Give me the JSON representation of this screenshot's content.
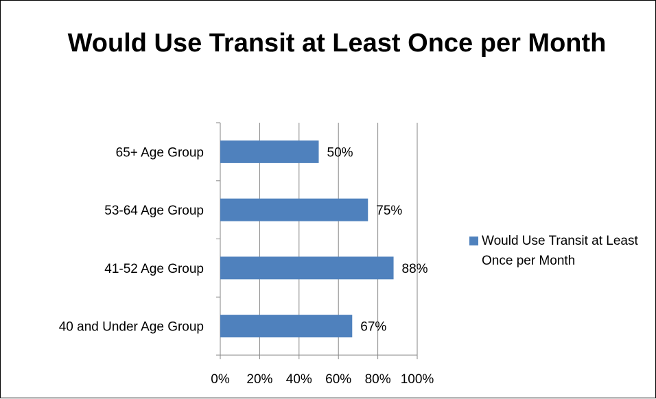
{
  "chart_data": {
    "type": "bar",
    "orientation": "horizontal",
    "title": "Would Use Transit at Least Once per Month",
    "categories": [
      "65+ Age Group",
      "53-64 Age Group",
      "41-52 Age Group",
      "40 and Under Age Group"
    ],
    "series": [
      {
        "name": "Would Use Transit at Least Once per Month",
        "values": [
          50,
          75,
          88,
          67
        ],
        "labels": [
          "50%",
          "75%",
          "88%",
          "67%"
        ],
        "color": "#4f81bd"
      }
    ],
    "xlim": [
      0,
      100
    ],
    "xticks": [
      "0%",
      "20%",
      "40%",
      "60%",
      "80%",
      "100%"
    ],
    "grid": true,
    "legend": "right"
  }
}
